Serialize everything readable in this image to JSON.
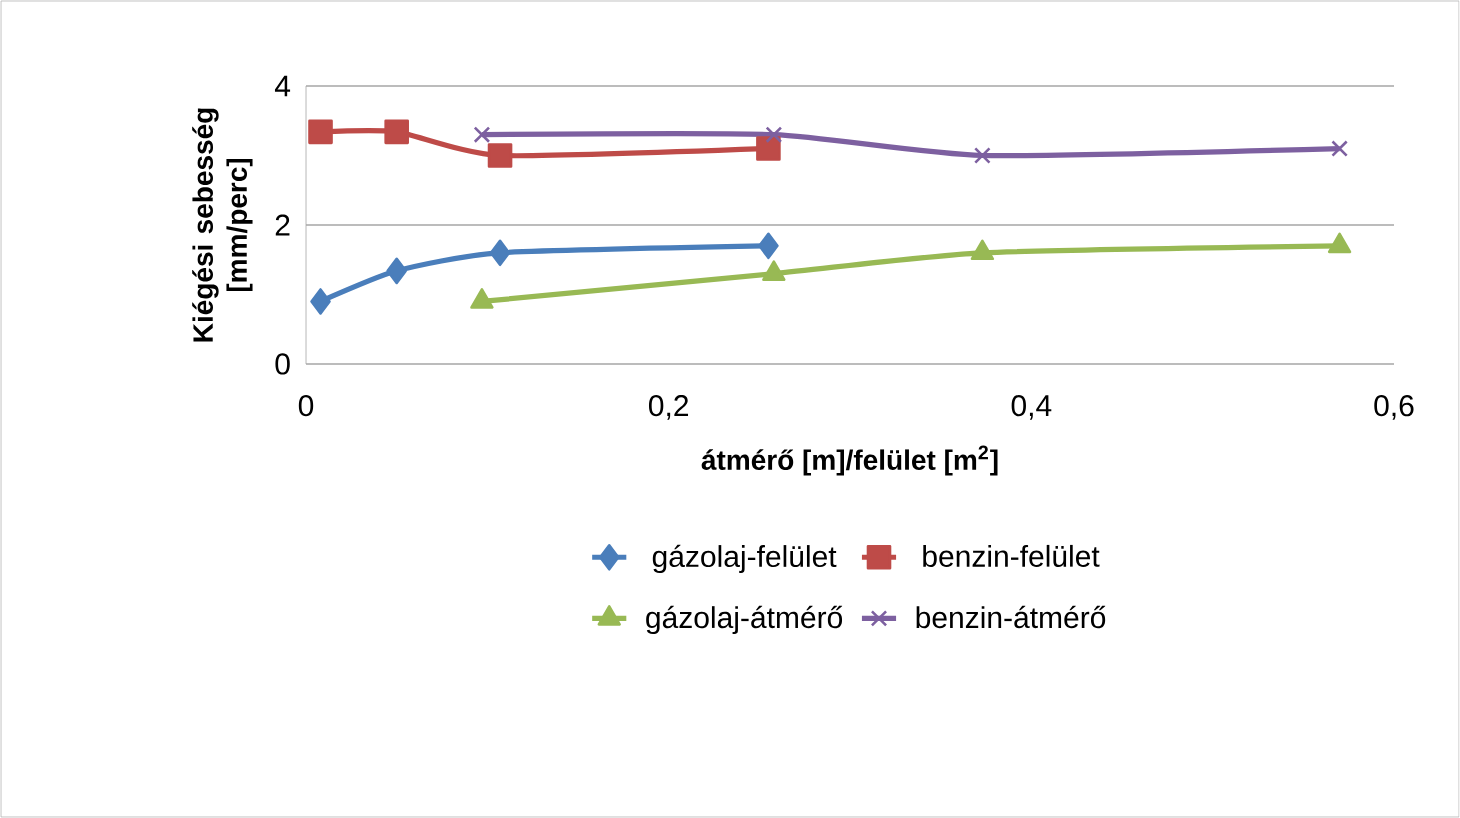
{
  "chart_data": {
    "type": "line",
    "xlabel": "átmérő [m]/felület [m$^{2}$]",
    "ylabel": "Kiégési sebesség [mm/perc]",
    "xlim": [
      0,
      0.6
    ],
    "xticks": [
      0,
      {
        "value": 0.2,
        "label": "0,2"
      },
      {
        "value": 0.4,
        "label": "0,4"
      },
      {
        "value": 0.6,
        "label": "0,6"
      }
    ],
    "ylim": [
      0,
      4
    ],
    "yticks": [
      0,
      2,
      4
    ],
    "grid": "y",
    "legend": "bottom",
    "line_style": "solid",
    "series": [
      {
        "name": "gázolaj-felület",
        "color": "#4a7ebb",
        "marker": "diamond",
        "x": [
          0.008,
          0.05,
          0.107,
          0.255
        ],
        "values": [
          0.9,
          1.34,
          1.6,
          1.7
        ]
      },
      {
        "name": "benzin-felület",
        "color": "#be4b48",
        "marker": "square",
        "x": [
          0.008,
          0.05,
          0.107,
          0.255
        ],
        "values": [
          3.34,
          3.34,
          3.0,
          3.1
        ]
      },
      {
        "name": "gázolaj-átmérő",
        "color": "#98b954",
        "marker": "triangle",
        "x": [
          0.097,
          0.258,
          0.373,
          0.57
        ],
        "values": [
          0.9,
          1.3,
          1.6,
          1.7
        ]
      },
      {
        "name": "benzin-átmérő",
        "color": "#7d60a0",
        "marker": "cross",
        "x": [
          0.097,
          0.258,
          0.373,
          0.57
        ],
        "values": [
          3.3,
          3.3,
          3.0,
          3.1
        ]
      }
    ]
  }
}
